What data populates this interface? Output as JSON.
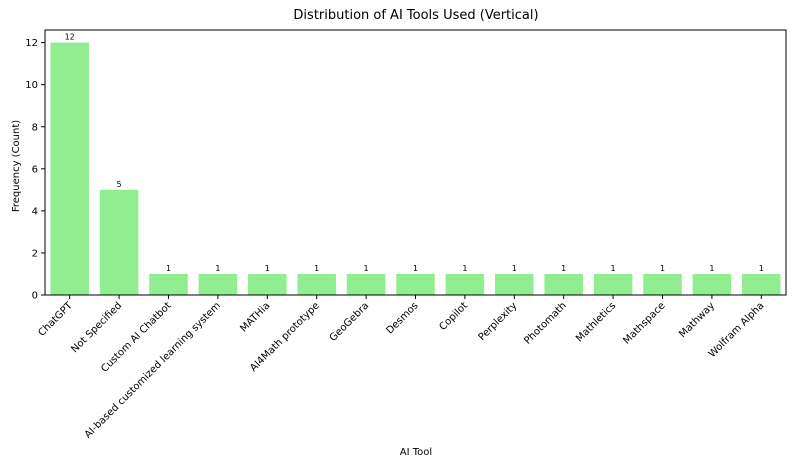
{
  "chart_data": {
    "type": "bar",
    "title": "Distribution of AI Tools Used (Vertical)",
    "xlabel": "AI Tool",
    "ylabel": "Frequency (Count)",
    "categories": [
      "ChatGPT",
      "Not Specified",
      "Custom AI Chatbot",
      "AI-based customized learning system",
      "MATHia",
      "AI4Math prototype",
      "GeoGebra",
      "Desmos",
      "Copilot",
      "Perplexity",
      "Photomath",
      "Mathletics",
      "Mathspace",
      "Mathway",
      "Wolfram Alpha"
    ],
    "values": [
      12,
      5,
      1,
      1,
      1,
      1,
      1,
      1,
      1,
      1,
      1,
      1,
      1,
      1,
      1
    ],
    "ylim": [
      0,
      12.6
    ],
    "yticks": [
      0,
      2,
      4,
      6,
      8,
      10,
      12
    ],
    "grid": false,
    "bar_color": "#90ee90"
  }
}
